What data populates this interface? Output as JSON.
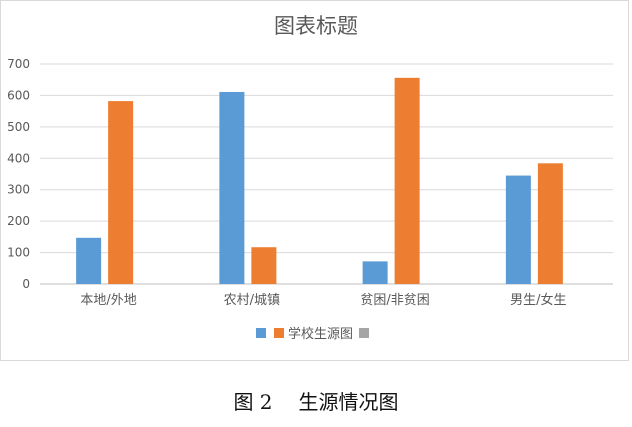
{
  "chart_data": {
    "type": "bar",
    "title": "图表标题",
    "categories": [
      "本地/外地",
      "农村/城镇",
      "贫困/非贫困",
      "男生/女生"
    ],
    "series": [
      {
        "name": "",
        "color": "#5B9BD5",
        "values": [
          147,
          611,
          72,
          345
        ]
      },
      {
        "name": "",
        "color": "#ED7D31",
        "values": [
          582,
          117,
          656,
          384
        ]
      }
    ],
    "ylim": [
      0,
      700
    ],
    "yticks": [
      0,
      100,
      200,
      300,
      400,
      500,
      600,
      700
    ],
    "grid": true,
    "legend": {
      "position": "bottom",
      "entries": [
        {
          "label": "",
          "color": "#5B9BD5"
        },
        {
          "label": "学校生源图",
          "color": "#ED7D31"
        },
        {
          "label": "",
          "color": "#A5A5A5"
        }
      ]
    }
  },
  "caption": {
    "figure_number": "图 2",
    "text": "生源情况图"
  }
}
